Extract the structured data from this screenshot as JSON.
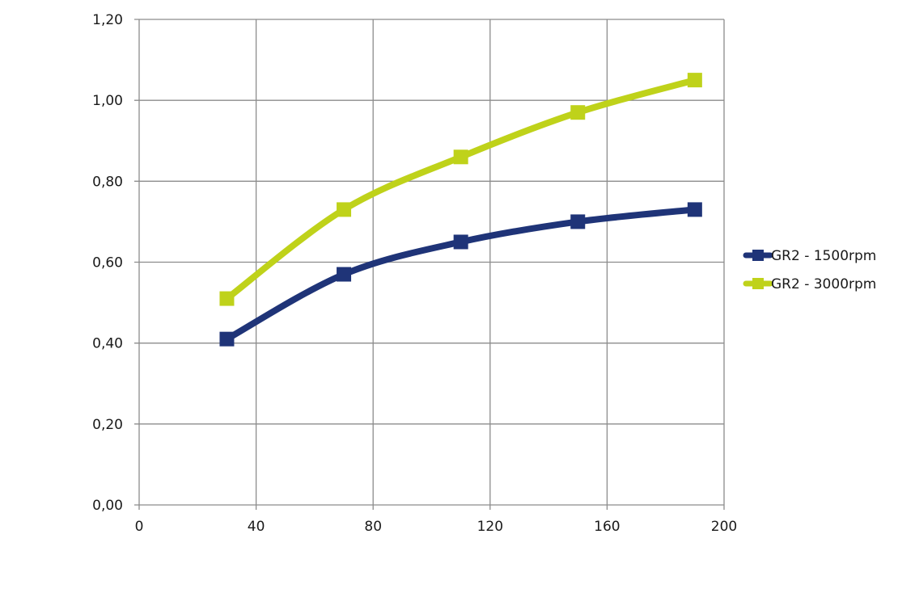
{
  "chart_data": {
    "type": "line",
    "xlim": [
      0,
      200
    ],
    "ylim": [
      0,
      1.2
    ],
    "x_ticks": [
      "0",
      "40",
      "80",
      "120",
      "160",
      "200"
    ],
    "y_ticks": [
      "0,00",
      "0,20",
      "0,40",
      "0,60",
      "0,80",
      "1,00",
      "1,20"
    ],
    "grid": true,
    "legend_position": "right",
    "smooth": true,
    "marker": "square",
    "series": [
      {
        "name": "GR2 - 1500rpm",
        "color": "#1f3478",
        "x": [
          30,
          70,
          110,
          150,
          190
        ],
        "y": [
          0.41,
          0.57,
          0.65,
          0.7,
          0.73
        ]
      },
      {
        "name": "GR2 - 3000rpm",
        "color": "#bfd21a",
        "x": [
          30,
          70,
          110,
          150,
          190
        ],
        "y": [
          0.51,
          0.73,
          0.86,
          0.97,
          1.05
        ]
      }
    ]
  }
}
